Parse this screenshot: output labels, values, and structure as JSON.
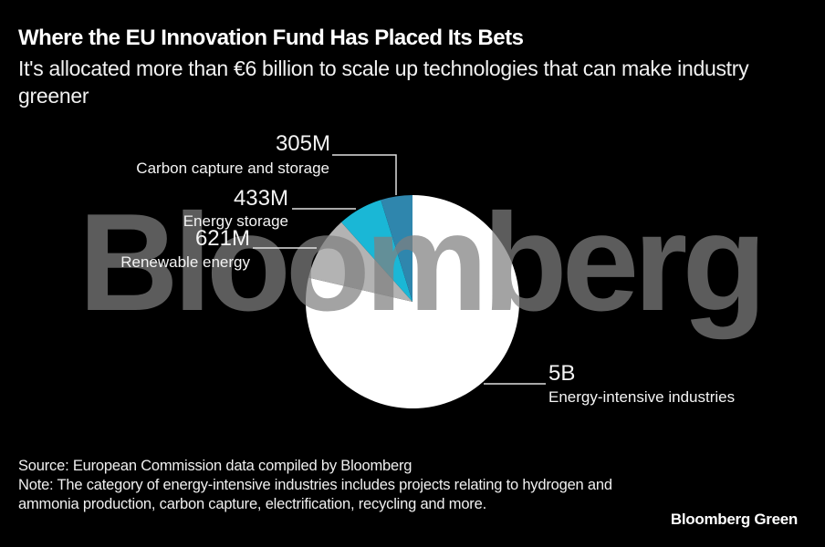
{
  "header": {
    "title": "Where the EU Innovation Fund Has Placed Its Bets",
    "subtitle": "It's allocated more than €6 billion to scale up technologies that can make industry greener"
  },
  "watermark": "Bloomberg",
  "labels": {
    "ccs": {
      "value": "305M",
      "category": "Carbon capture and storage"
    },
    "es": {
      "value": "433M",
      "category": "Energy storage"
    },
    "re": {
      "value": "621M",
      "category": "Renewable energy"
    },
    "eii": {
      "value": "5B",
      "category": "Energy-intensive industries"
    }
  },
  "footer": {
    "source": "Source: European Commission data compiled by Bloomberg",
    "note": "Note: The category of energy-intensive industries includes projects relating to hydrogen and ammonia production, carbon capture, electrification, recycling and more."
  },
  "brand": "Bloomberg Green",
  "colors": {
    "background": "#000000",
    "eii": "#ffffff",
    "re": "#b3b3b3",
    "es": "#1ab7d6",
    "ccs": "#2f86ad",
    "watermark": "#808080"
  },
  "chart_data": {
    "type": "pie",
    "title": "Where the EU Innovation Fund Has Placed Its Bets",
    "subtitle": "It's allocated more than €6 billion to scale up technologies that can make industry greener",
    "categories": [
      "Energy-intensive industries",
      "Renewable energy",
      "Energy storage",
      "Carbon capture and storage"
    ],
    "values": [
      5000,
      621,
      433,
      305
    ],
    "value_labels": [
      "5B",
      "621M",
      "433M",
      "305M"
    ],
    "unit": "EUR (millions)",
    "colors": [
      "#ffffff",
      "#b3b3b3",
      "#1ab7d6",
      "#2f86ad"
    ],
    "legend": "direct labels with leader lines",
    "source": "Source: European Commission data compiled by Bloomberg",
    "note": "Note: The category of energy-intensive industries includes projects relating to hydrogen and ammonia production, carbon capture, electrification, recycling and more."
  }
}
